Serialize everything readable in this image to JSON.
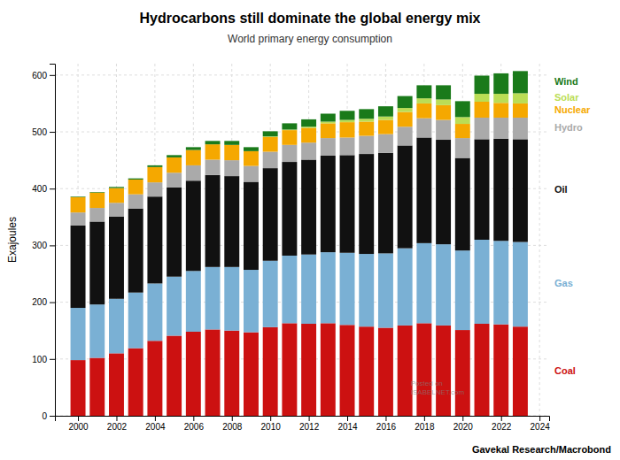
{
  "chart_data": {
    "type": "bar",
    "stacked": true,
    "title": "Hydrocarbons still dominate the global energy mix",
    "subtitle": "World primary energy consumption",
    "ylabel": "Exajoules",
    "annotations": [
      "Gavekal Research/Macrobond",
      "Posted on\nISABELNET.com"
    ],
    "x": [
      2000,
      2001,
      2002,
      2003,
      2004,
      2005,
      2006,
      2007,
      2008,
      2009,
      2010,
      2011,
      2012,
      2013,
      2014,
      2015,
      2016,
      2017,
      2018,
      2019,
      2020,
      2021,
      2022,
      2023
    ],
    "series": [
      {
        "name": "Coal",
        "color": "#cc1111",
        "values": [
          98,
          102,
          110,
          119,
          132,
          141,
          148,
          152,
          150,
          147,
          156,
          163,
          162,
          163,
          160,
          157,
          155,
          159,
          163,
          159,
          151,
          162,
          161,
          157
        ]
      },
      {
        "name": "Gas",
        "color": "#7ab0d4",
        "values": [
          92,
          94,
          96,
          98,
          101,
          104,
          107,
          110,
          112,
          110,
          117,
          119,
          122,
          125,
          127,
          128,
          131,
          136,
          141,
          143,
          140,
          148,
          147,
          149
        ]
      },
      {
        "name": "Oil",
        "color": "#111111",
        "values": [
          145,
          146,
          145,
          148,
          153,
          157,
          159,
          162,
          160,
          155,
          163,
          165,
          167,
          170,
          172,
          176,
          177,
          181,
          186,
          184,
          163,
          177,
          180,
          181
        ]
      },
      {
        "name": "Hydro",
        "color": "#aaaaaa",
        "values": [
          23,
          24,
          24,
          25,
          25,
          26,
          27,
          27,
          28,
          28,
          29,
          30,
          30,
          31,
          31,
          32,
          33,
          33,
          34,
          35,
          35,
          38,
          37,
          38
        ]
      },
      {
        "name": "Nuclear",
        "color": "#f5a800",
        "values": [
          27,
          27,
          26,
          26,
          27,
          27,
          27,
          27,
          27,
          26,
          26,
          26,
          26,
          26,
          27,
          25,
          25,
          26,
          26,
          26,
          25,
          28,
          26,
          25
        ]
      },
      {
        "name": "Solar",
        "color": "#bbdd55",
        "values": [
          0,
          0,
          0,
          0,
          0,
          0,
          0,
          0,
          0,
          0,
          1,
          1,
          2,
          3,
          4,
          5,
          6,
          7,
          9,
          10,
          12,
          14,
          16,
          18
        ]
      },
      {
        "name": "Wind",
        "color": "#1a7a1a",
        "values": [
          1,
          1,
          2,
          2,
          3,
          4,
          5,
          6,
          7,
          7,
          9,
          11,
          13,
          14,
          16,
          17,
          18,
          21,
          23,
          25,
          28,
          32,
          36,
          39
        ]
      }
    ],
    "xlim": [
      1998.8,
      2024.5
    ],
    "xticks": [
      2000,
      2002,
      2004,
      2006,
      2008,
      2010,
      2012,
      2014,
      2016,
      2018,
      2020,
      2022,
      2024
    ],
    "ylim": [
      0,
      620
    ],
    "yticks": [
      0,
      100,
      200,
      300,
      400,
      500,
      600
    ],
    "grid": true
  }
}
